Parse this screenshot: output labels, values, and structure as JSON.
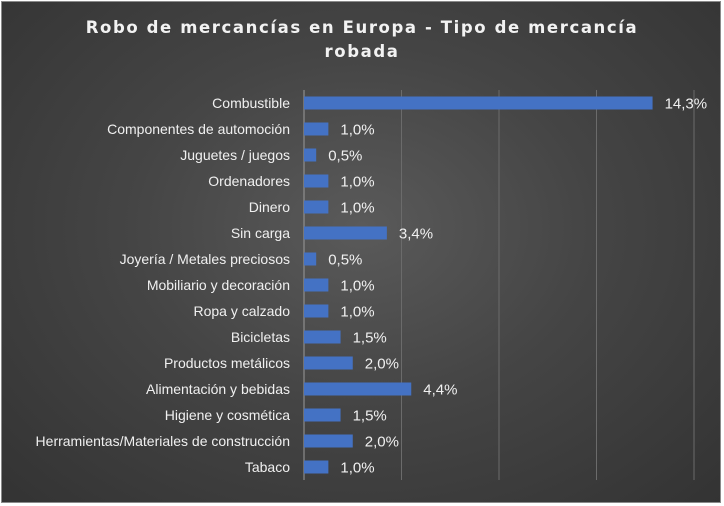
{
  "chart_data": {
    "type": "bar",
    "orientation": "horizontal",
    "title": "Robo de mercancías en Europa - Tipo de mercancía robada",
    "title_lines": [
      "Robo de mercancías en Europa - Tipo de mercancía",
      "robada"
    ],
    "categories": [
      "Combustible",
      "Componentes de automoción",
      "Juguetes / juegos",
      "Ordenadores",
      "Dinero",
      "Sin carga",
      "Joyería / Metales preciosos",
      "Mobiliario y decoración",
      "Ropa y calzado",
      "Bicicletas",
      "Productos metálicos",
      "Alimentación y bebidas",
      "Higiene y cosmética",
      "Herramientas/Materiales de construcción",
      "Tabaco"
    ],
    "values": [
      14.3,
      1.0,
      0.5,
      1.0,
      1.0,
      3.4,
      0.5,
      1.0,
      1.0,
      1.5,
      2.0,
      4.4,
      1.5,
      2.0,
      1.0
    ],
    "data_labels": [
      "14,3%",
      "1,0%",
      "0,5%",
      "1,0%",
      "1,0%",
      "3,4%",
      "0,5%",
      "1,0%",
      "1,0%",
      "1,5%",
      "2,0%",
      "4,4%",
      "1,5%",
      "2,0%",
      "1,0%"
    ],
    "xlim": [
      0,
      16
    ],
    "grid": "vertical",
    "legend": "none",
    "bar_color": "#4472c4",
    "background_color": "#404040",
    "text_color": "#f0f0f0"
  }
}
